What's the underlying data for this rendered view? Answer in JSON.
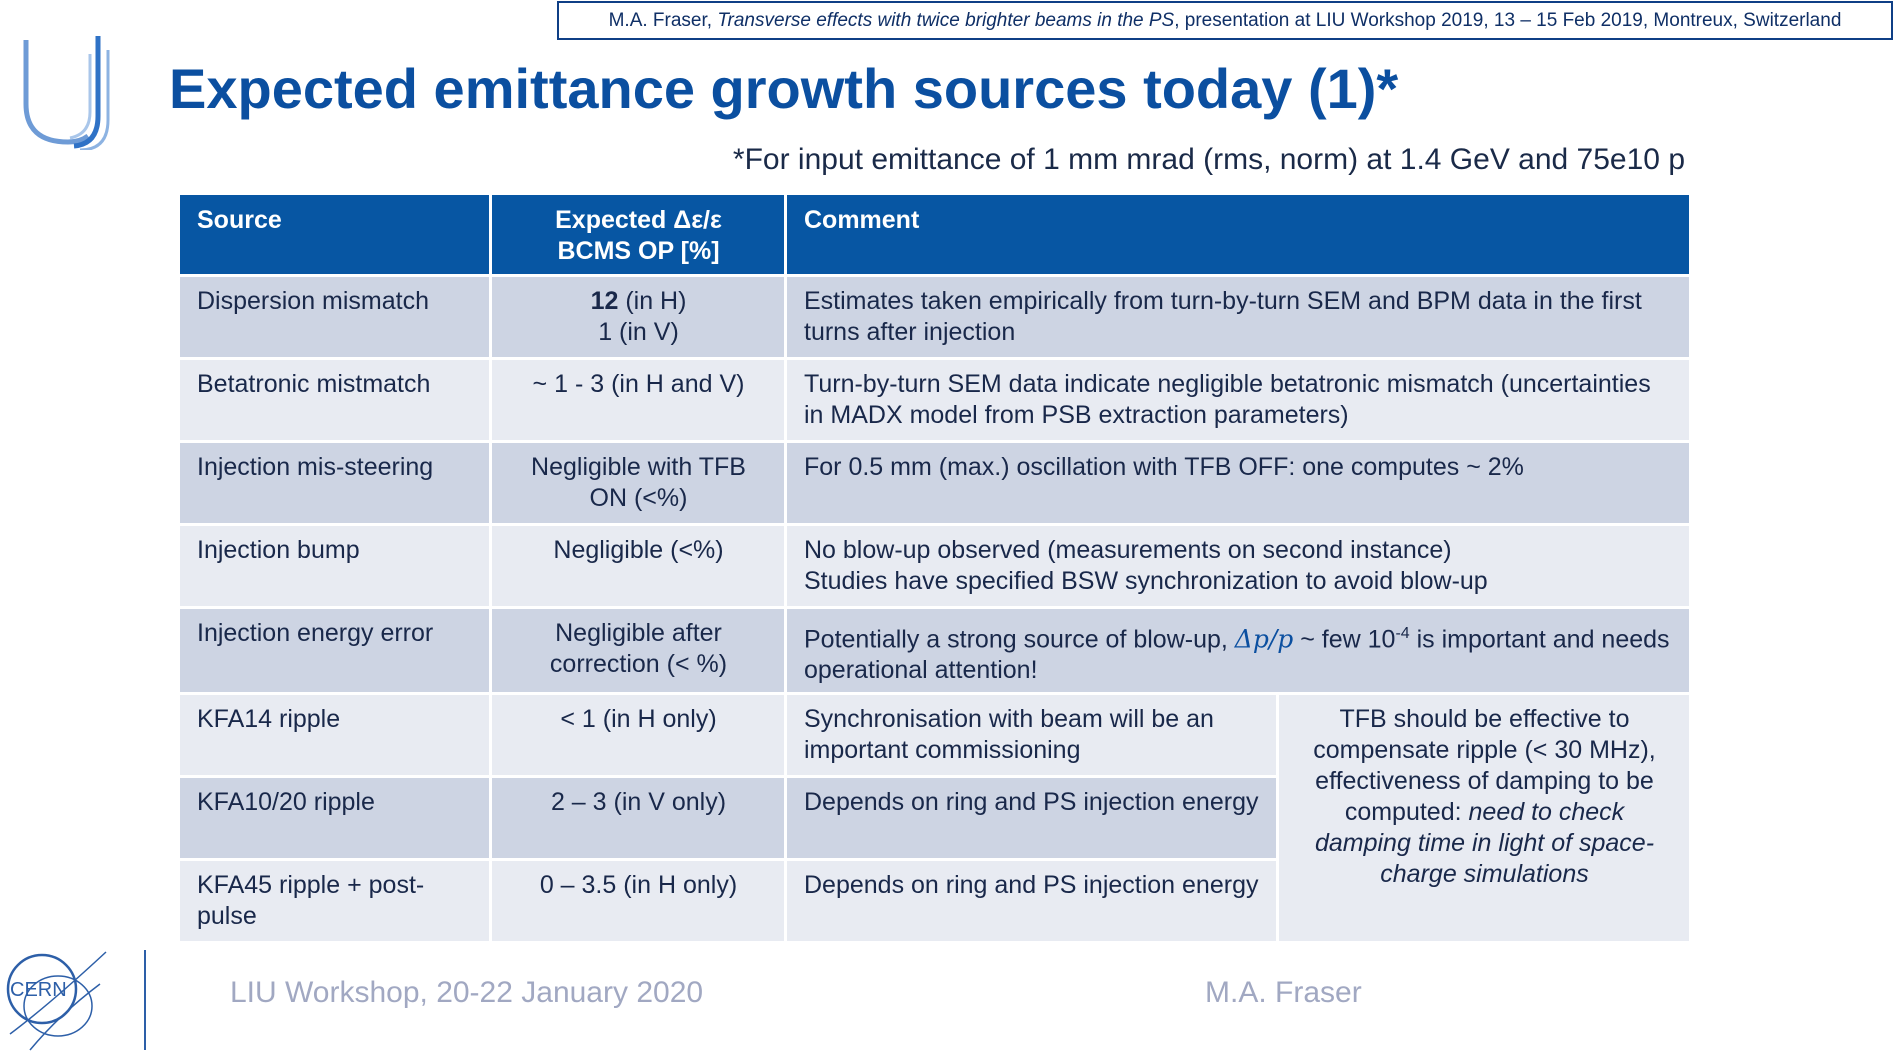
{
  "reference": {
    "author": "M.A. Fraser",
    "talk_title": "Transverse effects with twice brighter beams in the PS",
    "rest": ", presentation at LIU Workshop 2019, 13 – 15 Feb 2019, Montreux, Switzerland"
  },
  "title": "Expected emittance growth sources today (1)*",
  "subtitle": "*For input emittance of 1 mm mrad (rms, norm) at 1.4 GeV and 75e10 p",
  "table": {
    "headers": {
      "source": "Source",
      "expected_line1": "Expected Δε/ε",
      "expected_line2": "BCMS OP [%]",
      "comment": "Comment"
    },
    "rows": [
      {
        "source": "Dispersion mismatch",
        "expected_bold": "12",
        "expected_rest": " (in H)",
        "expected_line2": "1 (in V)",
        "comment": "Estimates taken empirically from turn-by-turn SEM and BPM data in the first turns after injection"
      },
      {
        "source": "Betatronic mistmatch",
        "expected": "~ 1 - 3 (in H and V)",
        "comment": "Turn-by-turn SEM data indicate negligible betatronic mismatch (uncertainties in MADX model from PSB extraction parameters)"
      },
      {
        "source": "Injection mis-steering",
        "expected": "Negligible with TFB ON (<%)",
        "comment": "For 0.5 mm (max.) oscillation with TFB OFF: one computes ~ 2%"
      },
      {
        "source": "Injection bump",
        "expected": "Negligible (<%)",
        "comment_line1": "No blow-up observed (measurements on second instance)",
        "comment_line2": "Studies have specified BSW synchronization to avoid blow-up"
      },
      {
        "source": "Injection energy error",
        "expected": "Negligible after correction (< %)",
        "comment_pre": "Potentially a strong source of blow-up, ",
        "comment_math": "Δp/p",
        "comment_mid": " ~ few 10",
        "comment_sup": "-4",
        "comment_post": " is important and needs operational attention!"
      },
      {
        "source": "KFA14 ripple",
        "expected": "< 1 (in H only)",
        "comment": "Synchronisation with beam will be an important commissioning"
      },
      {
        "source": "KFA10/20 ripple",
        "expected": "2 – 3 (in V only)",
        "comment": "Depends on ring and PS injection energy"
      },
      {
        "source": "KFA45 ripple + post-pulse",
        "expected": "0 – 3.5 (in H only)",
        "comment": "Depends on ring and PS injection energy"
      }
    ],
    "merged_comment_plain": "TFB should be effective to compensate ripple (< 30 MHz), effectiveness of damping to be computed: ",
    "merged_comment_italic": "need to check damping time in light of space-charge simulations"
  },
  "footer": {
    "event": "LIU Workshop, 20-22 January 2020",
    "author": "M.A. Fraser",
    "logo_text": "CERN"
  },
  "colors": {
    "header_bg": "#0756a3",
    "row_dark": "#cdd4e3",
    "row_light": "#e8ebf2",
    "title": "#0b4fa0"
  }
}
